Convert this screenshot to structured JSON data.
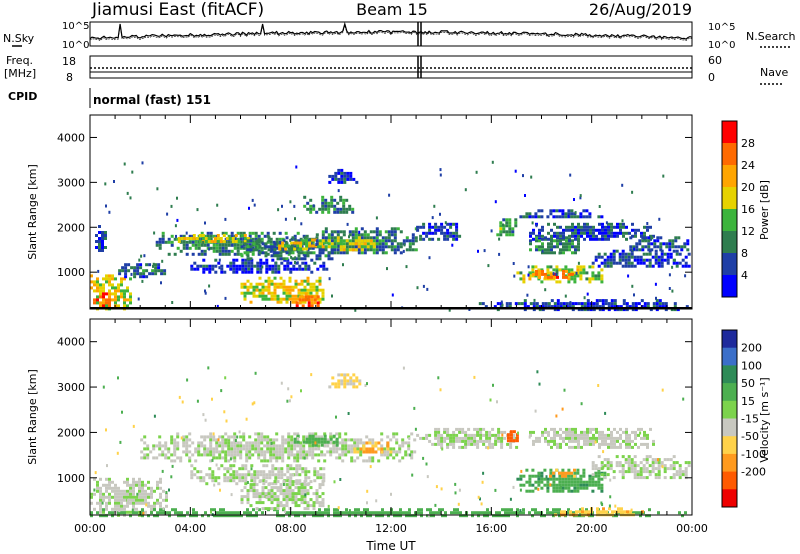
{
  "header": {
    "station": "Jiamusi East (fitACF)",
    "beam": "Beam 15",
    "date": "26/Aug/2019"
  },
  "noise_panel": {
    "left_label": "N.Sky",
    "right_label": "N.Search",
    "ticks_left": [
      "10^5",
      "10^0"
    ],
    "ticks_right": [
      "10^5",
      "10^0"
    ]
  },
  "freq_panel": {
    "left_label": "Freq.",
    "left_unit": "[MHz]",
    "right_label": "Nave",
    "ticks_left": [
      "18",
      "8"
    ],
    "ticks_right": [
      "60",
      "0"
    ]
  },
  "cpid": {
    "label": "CPID",
    "value": "normal (fast) 151"
  },
  "chart_data": [
    {
      "type": "heatmap",
      "name": "power",
      "ylabel": "Slant Range [km]",
      "xlabel": "",
      "ylim": [
        180,
        4500
      ],
      "yticks": [
        "4000",
        "3000",
        "2000",
        "1000"
      ],
      "xticks": [
        "00:00",
        "04:00",
        "08:00",
        "12:00",
        "16:00",
        "20:00",
        "00:00"
      ],
      "colorbar": {
        "label": "Power [dB]",
        "ticks": [
          "28",
          "24",
          "20",
          "16",
          "12",
          "8",
          "4"
        ],
        "colors": [
          "#ff0000",
          "#ff6a00",
          "#ffa500",
          "#e6d200",
          "#3cb43c",
          "#2f7d4f",
          "#1f3fa6",
          "#0000ff"
        ]
      },
      "regions": [
        {
          "t0": 0.0,
          "t1": 1.6,
          "r0": 200,
          "r1": 950,
          "v": 18
        },
        {
          "t0": 0.0,
          "t1": 0.8,
          "r0": 250,
          "r1": 550,
          "v": 26
        },
        {
          "t0": 0.2,
          "t1": 0.6,
          "r0": 1450,
          "r1": 2050,
          "v": 6
        },
        {
          "t0": 1.0,
          "t1": 3.0,
          "r0": 900,
          "r1": 1200,
          "v": 8
        },
        {
          "t0": 2.5,
          "t1": 9.0,
          "r0": 1400,
          "r1": 1900,
          "v": 10
        },
        {
          "t0": 3.5,
          "t1": 6.5,
          "r0": 1650,
          "r1": 1850,
          "v": 17
        },
        {
          "t0": 4.0,
          "t1": 9.5,
          "r0": 1000,
          "r1": 1300,
          "v": 5
        },
        {
          "t0": 6.0,
          "t1": 9.8,
          "r0": 1300,
          "r1": 1800,
          "v": 9
        },
        {
          "t0": 7.5,
          "t1": 9.5,
          "r0": 1500,
          "r1": 1750,
          "v": 19
        },
        {
          "t0": 6.0,
          "t1": 9.3,
          "r0": 300,
          "r1": 900,
          "v": 18
        },
        {
          "t0": 8.2,
          "t1": 9.2,
          "r0": 250,
          "r1": 550,
          "v": 26
        },
        {
          "t0": 8.5,
          "t1": 10.5,
          "r0": 2300,
          "r1": 2700,
          "v": 10
        },
        {
          "t0": 9.5,
          "t1": 10.6,
          "r0": 3000,
          "r1": 3300,
          "v": 5
        },
        {
          "t0": 9.0,
          "t1": 13.0,
          "r0": 1400,
          "r1": 2000,
          "v": 9
        },
        {
          "t0": 9.0,
          "t1": 11.5,
          "r0": 1500,
          "r1": 1800,
          "v": 17
        },
        {
          "t0": 13.0,
          "t1": 14.8,
          "r0": 1700,
          "r1": 2100,
          "v": 6
        },
        {
          "t0": 16.2,
          "t1": 17.0,
          "r0": 1800,
          "r1": 2200,
          "v": 12
        },
        {
          "t0": 17.0,
          "t1": 20.5,
          "r0": 2200,
          "r1": 2400,
          "v": 6
        },
        {
          "t0": 17.5,
          "t1": 22.5,
          "r0": 1700,
          "r1": 2100,
          "v": 6
        },
        {
          "t0": 17.5,
          "t1": 19.5,
          "r0": 1400,
          "r1": 1800,
          "v": 10
        },
        {
          "t0": 17.0,
          "t1": 20.5,
          "r0": 800,
          "r1": 1150,
          "v": 16
        },
        {
          "t0": 17.5,
          "t1": 19.3,
          "r0": 850,
          "r1": 1050,
          "v": 25
        },
        {
          "t0": 20.0,
          "t1": 23.9,
          "r0": 1100,
          "r1": 1500,
          "v": 6
        },
        {
          "t0": 21.5,
          "t1": 23.9,
          "r0": 1500,
          "r1": 1800,
          "v": 7
        },
        {
          "t0": 15.5,
          "t1": 23.9,
          "r0": 180,
          "r1": 400,
          "v": 5
        }
      ]
    },
    {
      "type": "heatmap",
      "name": "velocity",
      "ylabel": "Slant Range [km]",
      "xlabel": "Time UT",
      "ylim": [
        180,
        4500
      ],
      "yticks": [
        "4000",
        "3000",
        "2000",
        "1000"
      ],
      "xticks": [
        "00:00",
        "04:00",
        "08:00",
        "12:00",
        "16:00",
        "20:00",
        "00:00"
      ],
      "colorbar": {
        "label": "Velocity [m s⁻¹]",
        "ticks": [
          "200",
          "100",
          "50",
          "15",
          "-15",
          "-50",
          "-100",
          "-200"
        ],
        "colors": [
          "#1e2a9c",
          "#3b6fc9",
          "#2e8b57",
          "#4caf50",
          "#7cd34c",
          "#c8c8c0",
          "#ffd24a",
          "#ff9a1e",
          "#ff5a00",
          "#ee0000"
        ]
      },
      "regions": [
        {
          "t0": 0.0,
          "t1": 3.0,
          "r0": 200,
          "r1": 1000,
          "v": 0
        },
        {
          "t0": 0.0,
          "t1": 23.9,
          "r0": 180,
          "r1": 330,
          "v": 30
        },
        {
          "t0": 2.0,
          "t1": 13.0,
          "r0": 1400,
          "r1": 2000,
          "v": 0
        },
        {
          "t0": 4.0,
          "t1": 9.5,
          "r0": 900,
          "r1": 1300,
          "v": 0
        },
        {
          "t0": 6.0,
          "t1": 9.3,
          "r0": 300,
          "r1": 950,
          "v": 0
        },
        {
          "t0": 8.0,
          "t1": 10.0,
          "r0": 1750,
          "r1": 1950,
          "v": 30
        },
        {
          "t0": 10.5,
          "t1": 12.0,
          "r0": 1550,
          "r1": 1800,
          "v": -45
        },
        {
          "t0": 9.5,
          "t1": 10.8,
          "r0": 3000,
          "r1": 3300,
          "v": -20
        },
        {
          "t0": 13.0,
          "t1": 17.0,
          "r0": 1700,
          "r1": 2100,
          "v": 0
        },
        {
          "t0": 16.5,
          "t1": 17.1,
          "r0": 1850,
          "r1": 2050,
          "v": -150
        },
        {
          "t0": 17.0,
          "t1": 20.5,
          "r0": 700,
          "r1": 1200,
          "v": 40
        },
        {
          "t0": 18.3,
          "t1": 19.3,
          "r0": 1050,
          "r1": 1200,
          "v": -60
        },
        {
          "t0": 17.5,
          "t1": 22.5,
          "r0": 1700,
          "r1": 2100,
          "v": 0
        },
        {
          "t0": 20.0,
          "t1": 23.9,
          "r0": 1000,
          "r1": 1500,
          "v": 0
        },
        {
          "t0": 18.5,
          "t1": 22.0,
          "r0": 180,
          "r1": 350,
          "v": -40
        }
      ]
    }
  ]
}
